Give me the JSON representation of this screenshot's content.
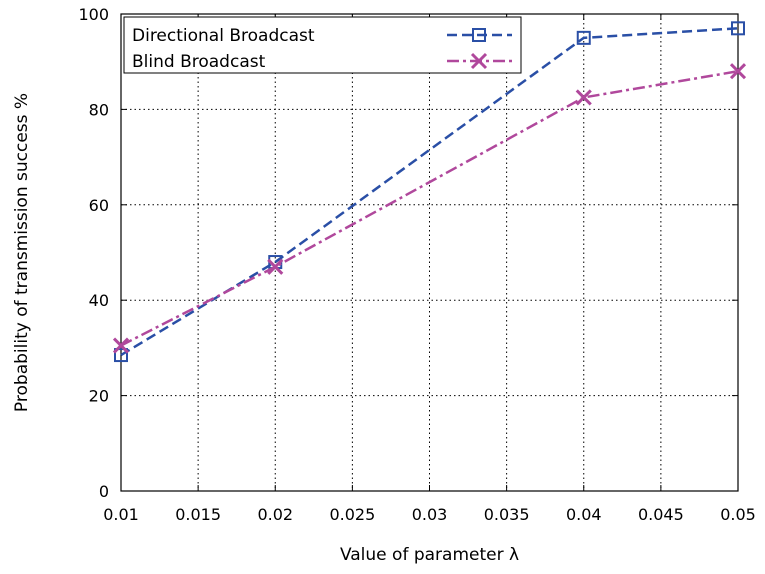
{
  "chart_data": {
    "type": "line",
    "title": "",
    "xlabel": "Value of parameter λ",
    "ylabel": "Probability of transmission success %",
    "xlim": [
      0.01,
      0.05
    ],
    "ylim": [
      0,
      100
    ],
    "x_ticks": [
      "0.01",
      "0.015",
      "0.02",
      "0.025",
      "0.03",
      "0.035",
      "0.04",
      "0.045",
      "0.05"
    ],
    "y_ticks": [
      "0",
      "20",
      "40",
      "60",
      "80",
      "100"
    ],
    "grid": true,
    "legend_position": "top-left",
    "x": [
      0.01,
      0.02,
      0.04,
      0.05
    ],
    "series": [
      {
        "name": "Directional Broadcast",
        "values": [
          28.5,
          48,
          95,
          97
        ],
        "color": "#2a4fa6",
        "marker": "square",
        "line_style": "dashed"
      },
      {
        "name": "Blind Broadcast",
        "values": [
          30.5,
          47,
          82.5,
          88
        ],
        "color": "#b0489c",
        "marker": "cross",
        "line_style": "dash-dot"
      }
    ]
  }
}
